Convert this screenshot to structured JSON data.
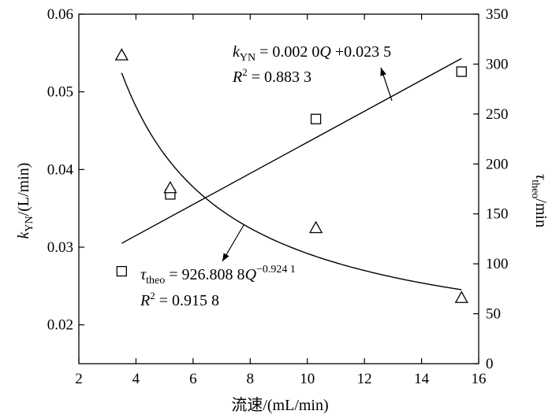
{
  "chart_data": {
    "type": "scatter",
    "x_axis": {
      "label": "流速/(mL/min)",
      "range": [
        2,
        16
      ],
      "ticks": [
        "2",
        "4",
        "6",
        "8",
        "10",
        "12",
        "14",
        "16"
      ]
    },
    "y_left": {
      "label_main": "k",
      "label_sub": "YN",
      "label_rest": "/(L/min)",
      "range": [
        0.015,
        0.06
      ],
      "ticks": [
        "0.02",
        "0.03",
        "0.04",
        "0.05",
        "0.06"
      ]
    },
    "y_right": {
      "label_main": "τ",
      "label_sub": "theo",
      "label_rest": "/min",
      "range": [
        0,
        350
      ],
      "ticks": [
        "0",
        "50",
        "100",
        "150",
        "200",
        "250",
        "300",
        "350"
      ]
    },
    "series": [
      {
        "axis": "left",
        "marker": "square",
        "x": [
          3.5,
          5.2,
          10.3,
          15.4
        ],
        "y": [
          0.0269,
          0.0368,
          0.0465,
          0.0526
        ]
      },
      {
        "axis": "right",
        "marker": "triangle",
        "x": [
          3.5,
          5.2,
          10.3,
          15.4
        ],
        "y": [
          309,
          176,
          136,
          66
        ]
      }
    ],
    "fits": [
      {
        "axis": "left",
        "type": "linear",
        "slope": 0.002,
        "intercept": 0.0235,
        "x_range": [
          3.5,
          15.4
        ],
        "equation_prefix": "k",
        "equation_sub": "YN",
        "equation_rest": " = 0.002 0",
        "equation_var": "Q",
        "equation_tail": " +0.023 5",
        "r2_label": "R",
        "r2_sup": "2",
        "r2_value": " = 0.883 3"
      },
      {
        "axis": "right",
        "type": "power",
        "coef": 926.8088,
        "exponent": -0.9241,
        "x_range": [
          3.5,
          15.4
        ],
        "equation_prefix": "τ",
        "equation_sub": "theo",
        "equation_rest": " = 926.808 8",
        "equation_var": "Q",
        "equation_sup": "−0.924 1",
        "r2_label": "R",
        "r2_sup": "2",
        "r2_value": " = 0.915 8"
      }
    ],
    "grid": false,
    "legend": "none"
  }
}
